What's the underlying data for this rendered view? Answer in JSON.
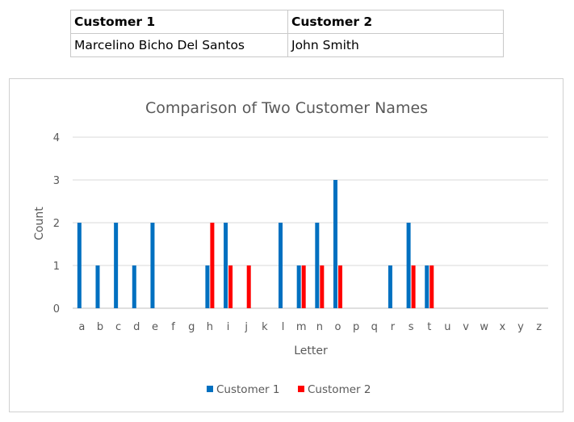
{
  "table": {
    "headers": [
      "Customer 1",
      "Customer 2"
    ],
    "row": [
      "Marcelino Bicho Del Santos",
      "John Smith"
    ]
  },
  "chart_data": {
    "type": "bar",
    "title": "Comparison of Two Customer Names",
    "xlabel": "Letter",
    "ylabel": "Count",
    "ylim": [
      0,
      4
    ],
    "yticks": [
      0,
      1,
      2,
      3,
      4
    ],
    "grid": true,
    "legend_position": "bottom",
    "categories": [
      "a",
      "b",
      "c",
      "d",
      "e",
      "f",
      "g",
      "h",
      "i",
      "j",
      "k",
      "l",
      "m",
      "n",
      "o",
      "p",
      "q",
      "r",
      "s",
      "t",
      "u",
      "v",
      "w",
      "x",
      "y",
      "z"
    ],
    "series": [
      {
        "name": "Customer 1",
        "color": "#0070C0",
        "values": [
          2,
          1,
          2,
          1,
          2,
          0,
          0,
          1,
          2,
          0,
          0,
          2,
          1,
          2,
          3,
          0,
          0,
          1,
          2,
          1,
          0,
          0,
          0,
          0,
          0,
          0
        ]
      },
      {
        "name": "Customer 2",
        "color": "#FF0000",
        "values": [
          0,
          0,
          0,
          0,
          0,
          0,
          0,
          2,
          1,
          1,
          0,
          0,
          1,
          1,
          1,
          0,
          0,
          0,
          1,
          1,
          0,
          0,
          0,
          0,
          0,
          0
        ]
      }
    ]
  }
}
